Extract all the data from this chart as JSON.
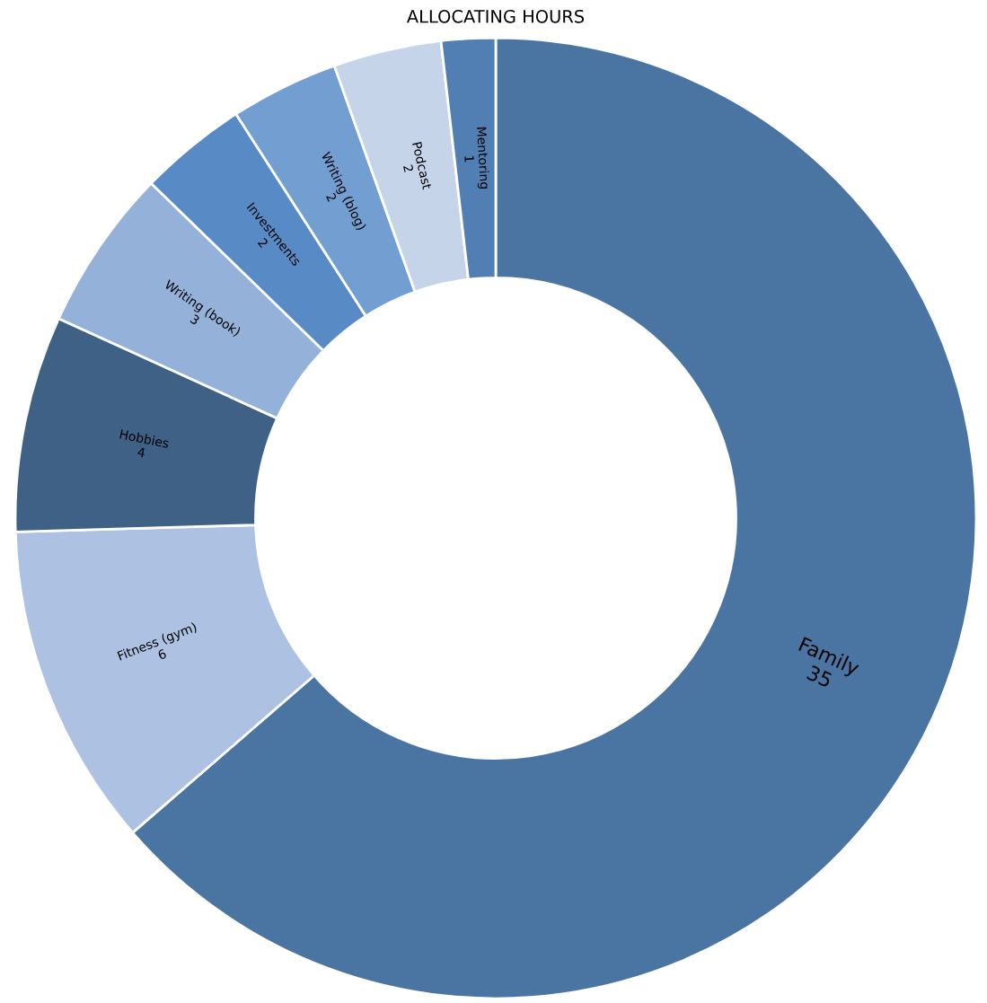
{
  "chart_data": {
    "type": "donut",
    "title": "ALLOCATING HOURS",
    "categories": [
      "Family",
      "Fitness (gym)",
      "Hobbies",
      "Writing (book)",
      "Investments",
      "Writing (blog)",
      "Podcast",
      "Mentoring"
    ],
    "values": [
      35,
      6,
      4,
      3,
      2,
      2,
      2,
      1
    ],
    "colors": [
      "#4a75a2",
      "#adc2e2",
      "#3f6186",
      "#94b1da",
      "#588bc5",
      "#729ed2",
      "#c6d4ea",
      "#527fb3"
    ],
    "data_labels": true
  }
}
